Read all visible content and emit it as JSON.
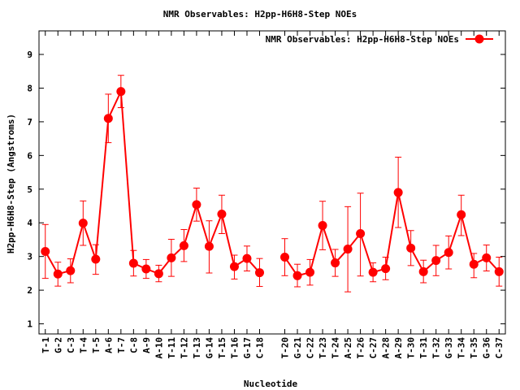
{
  "chart_data": {
    "type": "line",
    "title": "NMR Observables: H2pp-H6H8-Step NOEs",
    "xlabel": "Nucleotide",
    "ylabel": "H2pp-H6H8-Step (Angstroms)",
    "ylim": [
      0.7,
      9.7
    ],
    "yticks": [
      1,
      2,
      3,
      4,
      5,
      6,
      7,
      8,
      9
    ],
    "grid": false,
    "legend_position": "top-right",
    "error_bars": true,
    "color": "#ff0000",
    "categories": [
      "T-1",
      "G-2",
      "C-3",
      "T-4",
      "T-5",
      "A-6",
      "T-7",
      "C-8",
      "A-9",
      "A-10",
      "T-11",
      "T-12",
      "T-13",
      "G-14",
      "T-15",
      "T-16",
      "G-17",
      "C-18",
      "T-20",
      "G-21",
      "C-22",
      "T-23",
      "T-24",
      "A-25",
      "T-26",
      "C-27",
      "A-28",
      "A-29",
      "T-30",
      "T-31",
      "T-32",
      "G-33",
      "T-34",
      "T-35",
      "G-36",
      "C-37"
    ],
    "series": [
      {
        "name": "NMR Observables: H2pp-H6H8-Step NOEs",
        "segments": [
          {
            "x": [
              1,
              2,
              3,
              4,
              5,
              6,
              7,
              8,
              9,
              10,
              11,
              12,
              13,
              14,
              15,
              16,
              17,
              18
            ],
            "values": [
              3.15,
              2.48,
              2.58,
              3.99,
              2.92,
              7.1,
              7.9,
              2.8,
              2.63,
              2.49,
              2.96,
              3.32,
              4.54,
              3.3,
              4.26,
              2.7,
              2.94,
              2.52
            ],
            "err_low": [
              2.35,
              2.12,
              2.22,
              3.33,
              2.47,
              6.38,
              7.42,
              2.42,
              2.35,
              2.25,
              2.41,
              2.85,
              4.05,
              2.51,
              3.68,
              2.33,
              2.57,
              2.11
            ],
            "err_high": [
              3.95,
              2.83,
              2.93,
              4.65,
              3.35,
              7.82,
              8.38,
              3.18,
              2.91,
              2.74,
              3.51,
              3.8,
              5.03,
              4.06,
              4.82,
              3.04,
              3.31,
              2.94
            ]
          },
          {
            "x": [
              20,
              21,
              22,
              23,
              24,
              25,
              26,
              27,
              28,
              29,
              30,
              31,
              32,
              33,
              34,
              35,
              36,
              37
            ],
            "values": [
              2.98,
              2.43,
              2.53,
              3.92,
              2.81,
              3.22,
              3.68,
              2.53,
              2.64,
              4.9,
              3.25,
              2.55,
              2.88,
              3.12,
              4.24,
              2.77,
              2.96,
              2.55
            ],
            "err_low": [
              2.43,
              2.1,
              2.15,
              3.2,
              2.41,
              1.95,
              2.42,
              2.25,
              2.31,
              3.86,
              2.73,
              2.22,
              2.43,
              2.63,
              3.62,
              2.37,
              2.57,
              2.12
            ],
            "err_high": [
              3.53,
              2.77,
              2.91,
              4.64,
              3.21,
              4.48,
              4.88,
              2.81,
              2.98,
              5.95,
              3.77,
              2.89,
              3.33,
              3.61,
              4.82,
              3.09,
              3.34,
              2.98
            ]
          }
        ]
      }
    ]
  }
}
